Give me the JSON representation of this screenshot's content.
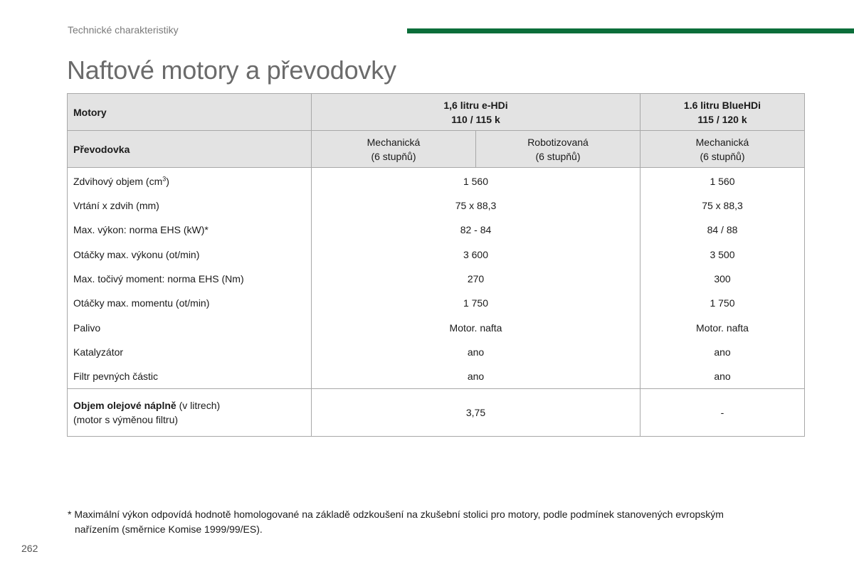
{
  "header": {
    "section": "Technické charakteristiky",
    "title": "Naftové motory a převodovky",
    "accent_color": "#0b6e3a"
  },
  "table": {
    "motory_label": "Motory",
    "engine1_line1": "1,6 litru e-HDi",
    "engine1_line2": "110 / 115 k",
    "engine2_line1": "1.6 litru BlueHDi",
    "engine2_line2": "115 / 120 k",
    "prevodovka_label": "Převodovka",
    "gear1_line1": "Mechanická",
    "gear1_line2": "(6 stupňů)",
    "gear2_line1": "Robotizovaná",
    "gear2_line2": "(6 stupňů)",
    "gear3_line1": "Mechanická",
    "gear3_line2": "(6 stupňů)",
    "rows": [
      {
        "label": "Zdvihový objem (cm",
        "label_sup": "3",
        "label_end": ")",
        "v1": "1 560",
        "v2": "1 560"
      },
      {
        "label": "Vrtání x zdvih (mm)",
        "v1": "75 x 88,3",
        "v2": "75 x 88,3"
      },
      {
        "label": "Max. výkon: norma EHS (kW)*",
        "v1": "82 - 84",
        "v2": "84 / 88"
      },
      {
        "label": "Otáčky max. výkonu (ot/min)",
        "v1": "3 600",
        "v2": "3 500"
      },
      {
        "label": "Max. točivý moment: norma EHS (Nm)",
        "v1": "270",
        "v2": "300"
      },
      {
        "label": "Otáčky max. momentu (ot/min)",
        "v1": "1 750",
        "v2": "1 750"
      },
      {
        "label": "Palivo",
        "v1": "Motor. nafta",
        "v2": "Motor. nafta"
      },
      {
        "label": "Katalyzátor",
        "v1": "ano",
        "v2": "ano"
      },
      {
        "label": "Filtr pevných částic",
        "v1": "ano",
        "v2": "ano"
      }
    ],
    "oil": {
      "label_bold": "Objem olejové náplně",
      "label_rest": " (v litrech)",
      "label_line2": "(motor s výměnou filtru)",
      "v1": "3,75",
      "v2": "-"
    }
  },
  "footnote": {
    "line1": "* Maximální výkon odpovídá hodnotě homologované na základě odzkoušení na zkušební stolici pro motory, podle podmínek stanovených evropským",
    "line2": "nařízením (směrnice Komise 1999/99/ES)."
  },
  "page_number": "262"
}
